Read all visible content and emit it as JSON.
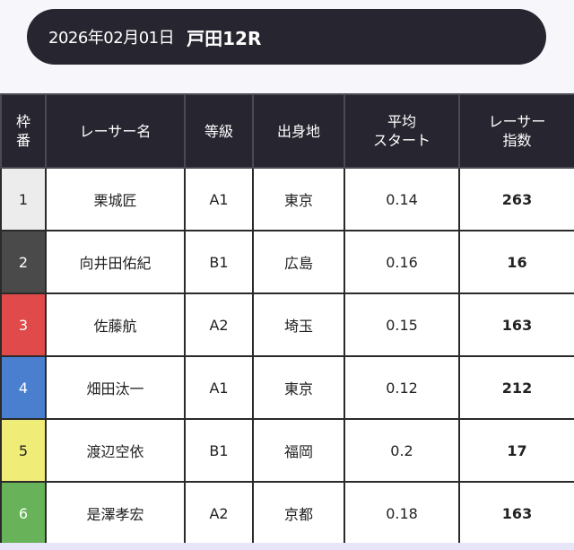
{
  "header": {
    "date": "2026年02月01日",
    "venue_race": "戸田12R"
  },
  "table": {
    "columns": [
      "枠\n番",
      "レーサー名",
      "等級",
      "出身地",
      "平均\nスタート",
      "レーサー\n指数"
    ],
    "rows": [
      {
        "frame": "1",
        "name": "栗城匠",
        "grade": "A1",
        "origin": "東京",
        "avg_start": "0.14",
        "index": "263",
        "color": "#ececec",
        "text_color": "#222222"
      },
      {
        "frame": "2",
        "name": "向井田佑紀",
        "grade": "B1",
        "origin": "広島",
        "avg_start": "0.16",
        "index": "16",
        "color": "#4a4a4a",
        "text_color": "#ffffff"
      },
      {
        "frame": "3",
        "name": "佐藤航",
        "grade": "A2",
        "origin": "埼玉",
        "avg_start": "0.15",
        "index": "163",
        "color": "#e04a4a",
        "text_color": "#ffffff"
      },
      {
        "frame": "4",
        "name": "畑田汰一",
        "grade": "A1",
        "origin": "東京",
        "avg_start": "0.12",
        "index": "212",
        "color": "#4a7fcf",
        "text_color": "#ffffff"
      },
      {
        "frame": "5",
        "name": "渡辺空依",
        "grade": "B1",
        "origin": "福岡",
        "avg_start": "0.2",
        "index": "17",
        "color": "#f0ec78",
        "text_color": "#222222"
      },
      {
        "frame": "6",
        "name": "是澤孝宏",
        "grade": "A2",
        "origin": "京都",
        "avg_start": "0.18",
        "index": "163",
        "color": "#68b35a",
        "text_color": "#ffffff"
      }
    ]
  }
}
